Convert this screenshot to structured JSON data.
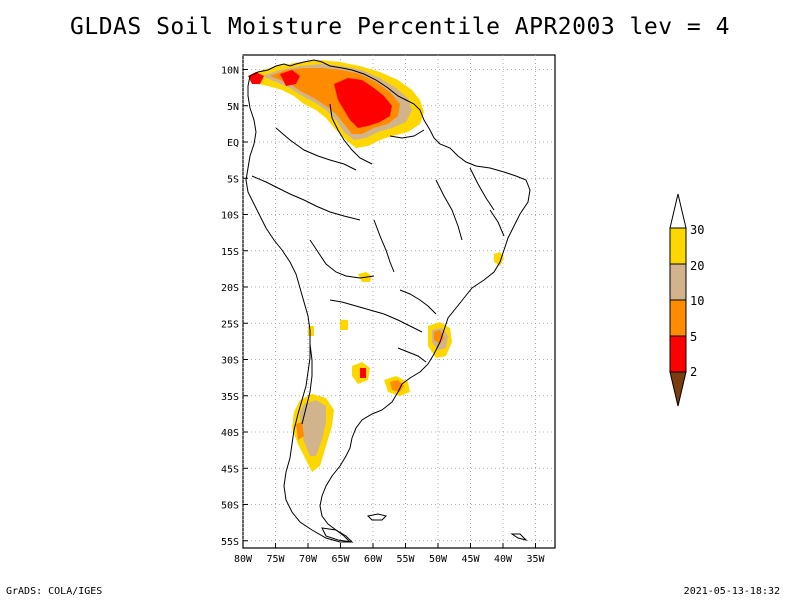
{
  "title": "GLDAS Soil Moisture Percentile APR2003 lev = 4",
  "footer": {
    "left": "GrADS: COLA/IGES",
    "right": "2021-05-13-18:32"
  },
  "map": {
    "lon_range": [
      -80,
      -32
    ],
    "lat_range": [
      -56,
      12
    ],
    "lon_labels": [
      "80W",
      "75W",
      "70W",
      "65W",
      "60W",
      "55W",
      "50W",
      "45W",
      "40W",
      "35W"
    ],
    "lat_labels": [
      "10N",
      "5N",
      "EQ",
      "5S",
      "10S",
      "15S",
      "20S",
      "25S",
      "30S",
      "35S",
      "40S",
      "45S",
      "50S",
      "55S"
    ],
    "grid": true
  },
  "colorbar": {
    "labels": [
      "2",
      "5",
      "10",
      "20",
      "30"
    ],
    "colors": {
      "below_2": "#7a3c10",
      "2_5": "#ff0000",
      "5_10": "#ff8c00",
      "10_20": "#d2b48c",
      "20_30": "#ffd700",
      "above_30": "#ffffff"
    }
  }
}
